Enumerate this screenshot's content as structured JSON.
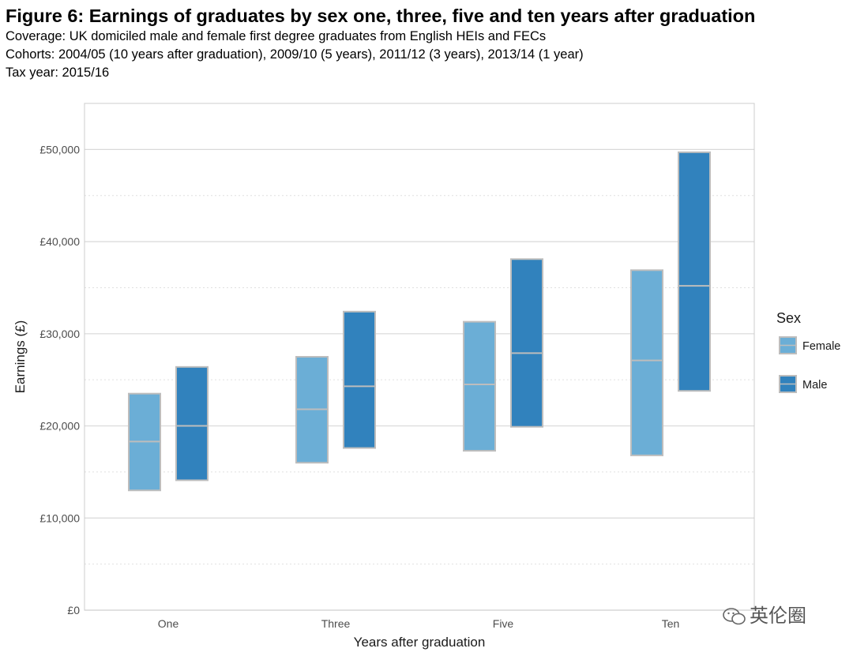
{
  "header": {
    "title": "Figure 6: Earnings of graduates by sex one, three, five and ten years after graduation",
    "subtitle_lines": [
      "Coverage: UK domiciled male and female first degree graduates from English HEIs and FECs",
      "Cohorts: 2004/05 (10 years after graduation), 2009/10 (5 years), 2011/12 (3 years), 2013/14 (1 year)",
      "Tax year: 2015/16"
    ]
  },
  "watermark": {
    "text": "英伦圈",
    "icon": "wechat-logo-icon"
  },
  "chart_data": {
    "type": "bar",
    "subtype": "floating-range-with-median",
    "xlabel": "Years after graduation",
    "ylabel": "Earnings (£)",
    "categories": [
      "One",
      "Three",
      "Five",
      "Ten"
    ],
    "ylim": [
      0,
      55000
    ],
    "yticks": [
      0,
      10000,
      20000,
      30000,
      40000,
      50000
    ],
    "ytick_labels": [
      "£0",
      "£10,000",
      "£20,000",
      "£30,000",
      "£40,000",
      "£50,000"
    ],
    "grid": true,
    "legend": {
      "title": "Sex",
      "position": "right"
    },
    "series": [
      {
        "name": "Female",
        "color": "#6baed6",
        "low": [
          13000,
          16000,
          17300,
          16800
        ],
        "median": [
          18300,
          21800,
          24500,
          27100
        ],
        "high": [
          23500,
          27500,
          31300,
          36900
        ]
      },
      {
        "name": "Male",
        "color": "#3182bd",
        "low": [
          14100,
          17600,
          19900,
          23800
        ],
        "median": [
          20000,
          24300,
          27900,
          35200
        ],
        "high": [
          26400,
          32400,
          38100,
          49700
        ]
      }
    ],
    "median_color": "#bdbdbd",
    "border_color": "#bdbdbd"
  }
}
